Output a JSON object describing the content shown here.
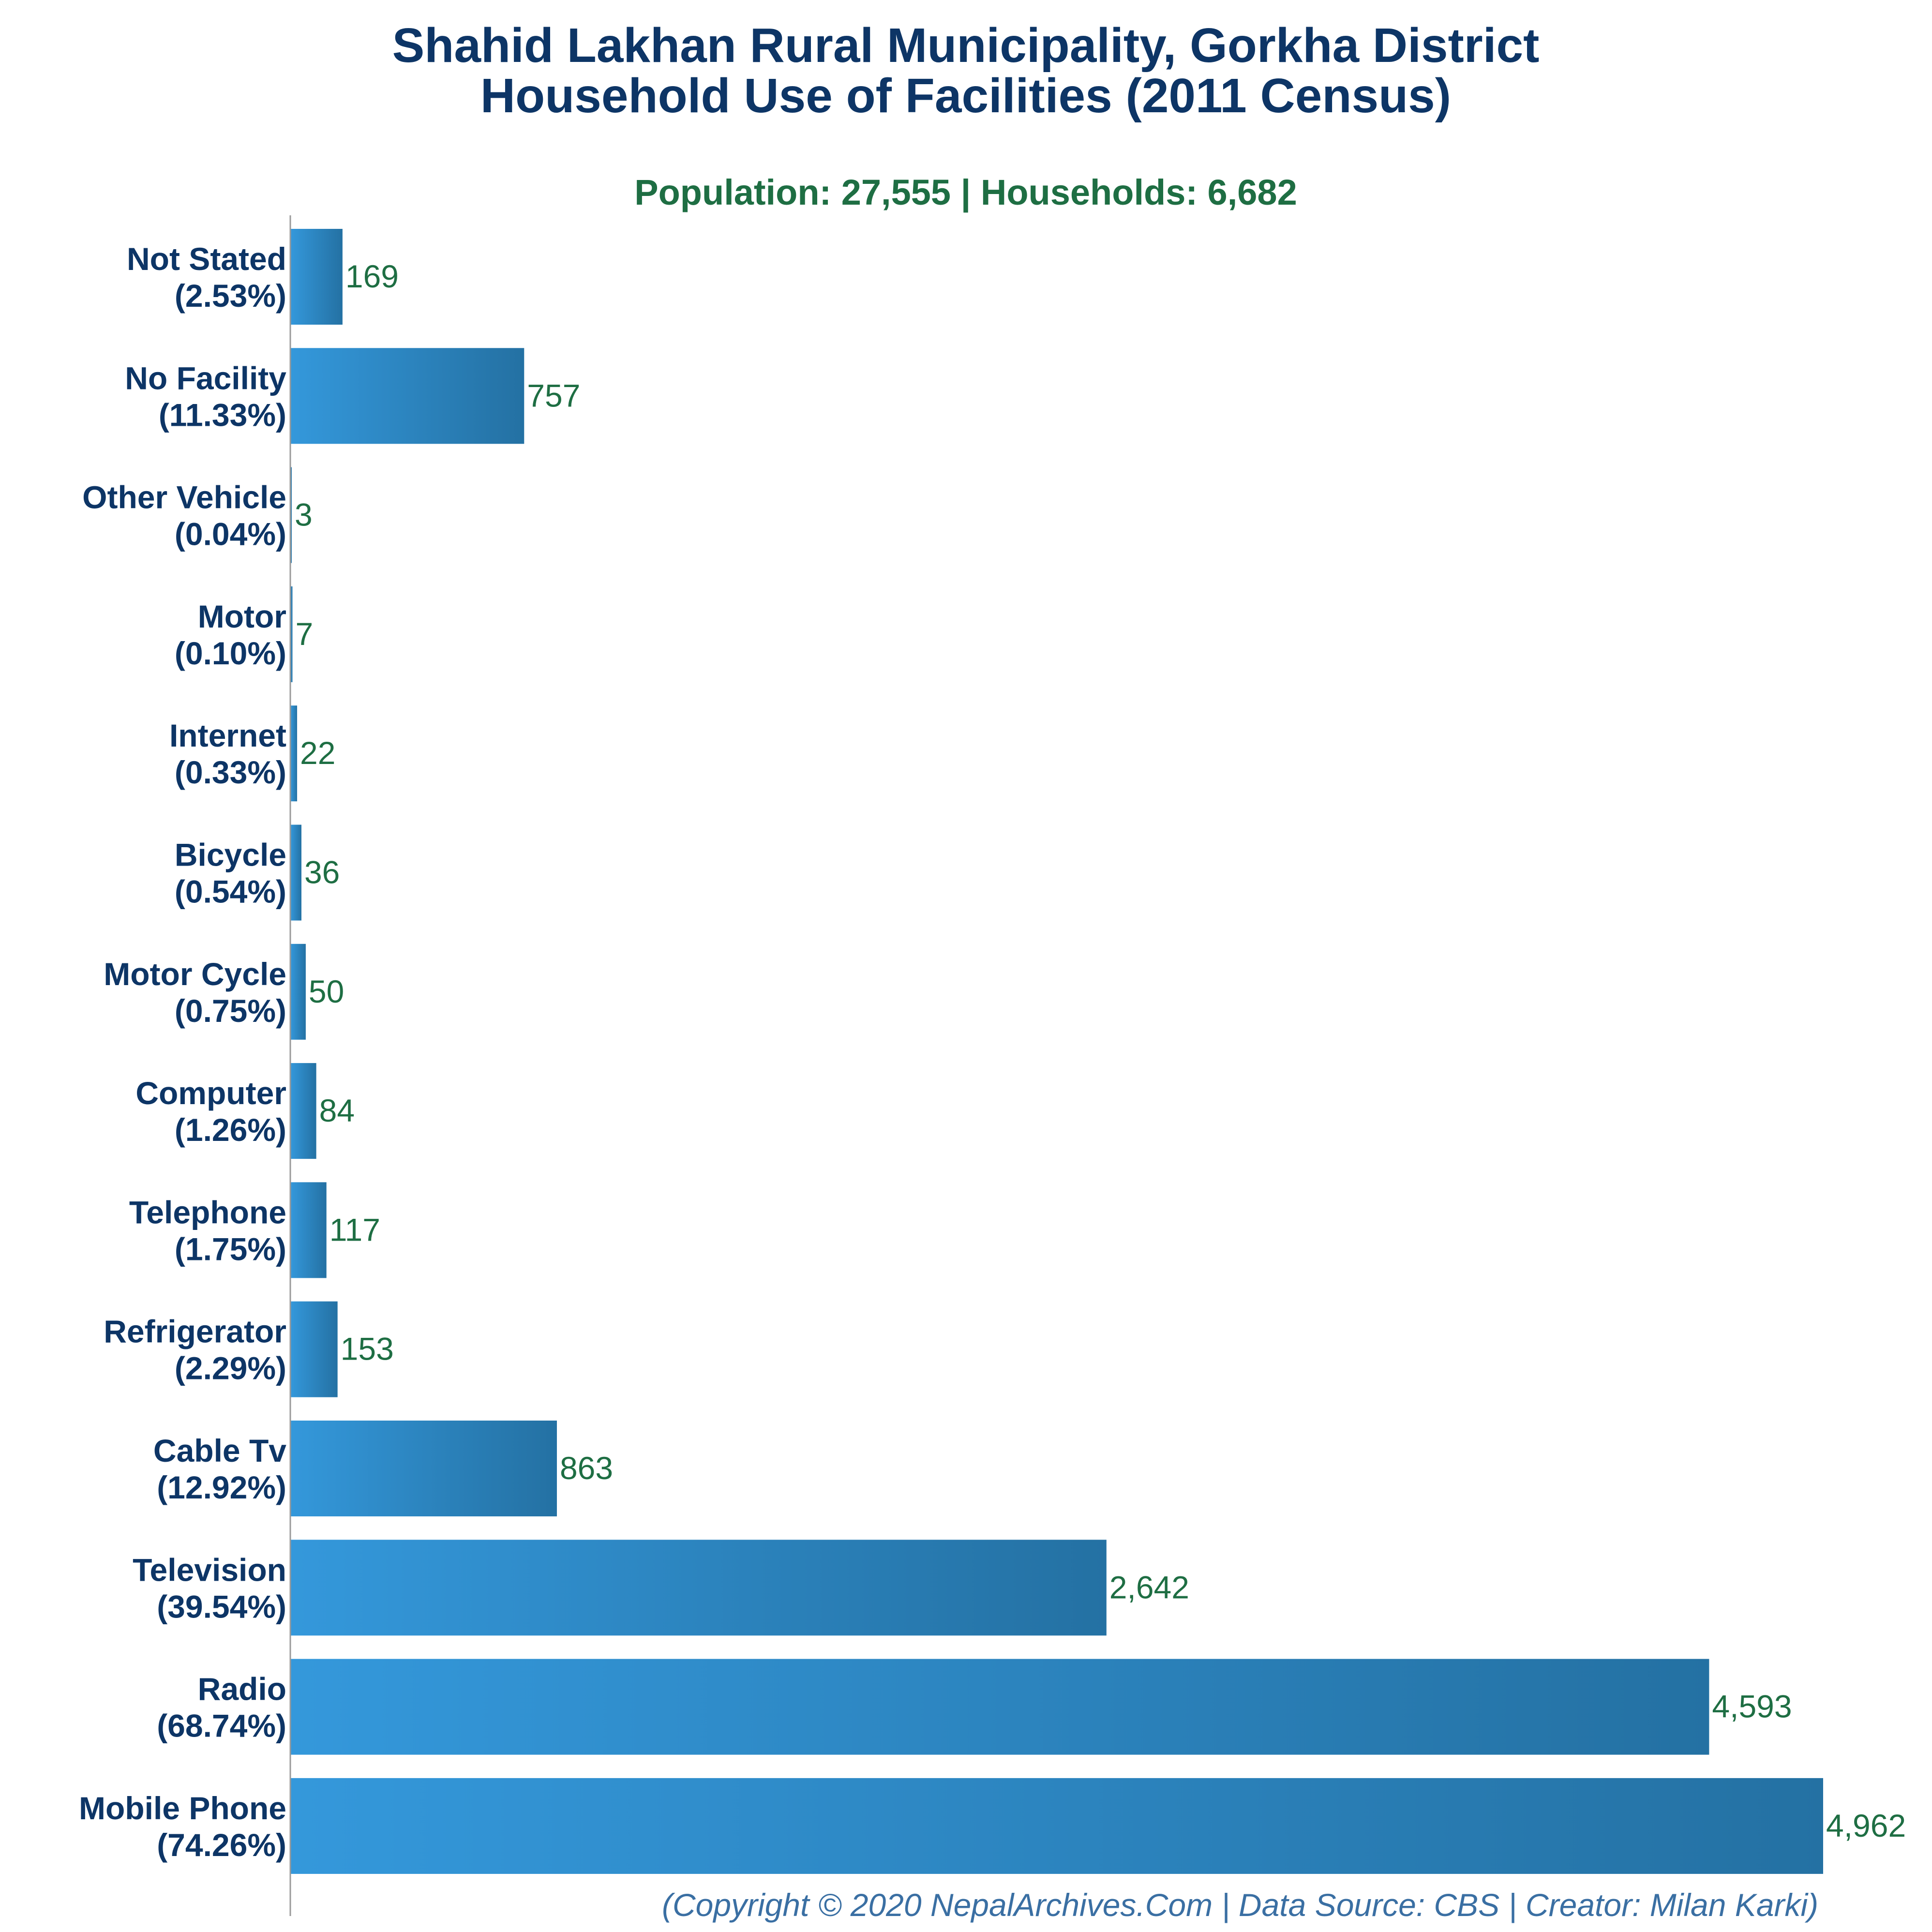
{
  "title_line1": "Shahid Lakhan Rural Municipality, Gorkha District",
  "title_line2": "Household Use of Facilities (2011 Census)",
  "subtitle": "Population: 27,555 | Households: 6,682",
  "footer": "(Copyright © 2020 NepalArchives.Com | Data Source: CBS | Creator: Milan Karki)",
  "colors": {
    "bar_light": "#3498db",
    "bar_dark": "#2471a3",
    "title": "#0d3566",
    "value_label": "#1e6e43",
    "footer": "#3a6fa3"
  },
  "chart_data": {
    "type": "bar",
    "orientation": "horizontal",
    "categories": [
      "Not Stated",
      "No Facility",
      "Other Vehicle",
      "Motor",
      "Internet",
      "Bicycle",
      "Motor Cycle",
      "Computer",
      "Telephone",
      "Refrigerator",
      "Cable Tv",
      "Television",
      "Radio",
      "Mobile Phone"
    ],
    "percent_labels": [
      "(2.53%)",
      "(11.33%)",
      "(0.04%)",
      "(0.10%)",
      "(0.33%)",
      "(0.54%)",
      "(0.75%)",
      "(1.26%)",
      "(1.75%)",
      "(2.29%)",
      "(12.92%)",
      "(39.54%)",
      "(68.74%)",
      "(74.26%)"
    ],
    "values": [
      169,
      757,
      3,
      7,
      22,
      36,
      50,
      84,
      117,
      153,
      863,
      2642,
      4593,
      4962
    ],
    "value_labels": [
      "169",
      "757",
      "3",
      "7",
      "22",
      "36",
      "50",
      "84",
      "117",
      "153",
      "863",
      "2,642",
      "4,593",
      "4,962"
    ],
    "xlim": [
      0,
      4962
    ],
    "grid": false,
    "legend": "none"
  }
}
